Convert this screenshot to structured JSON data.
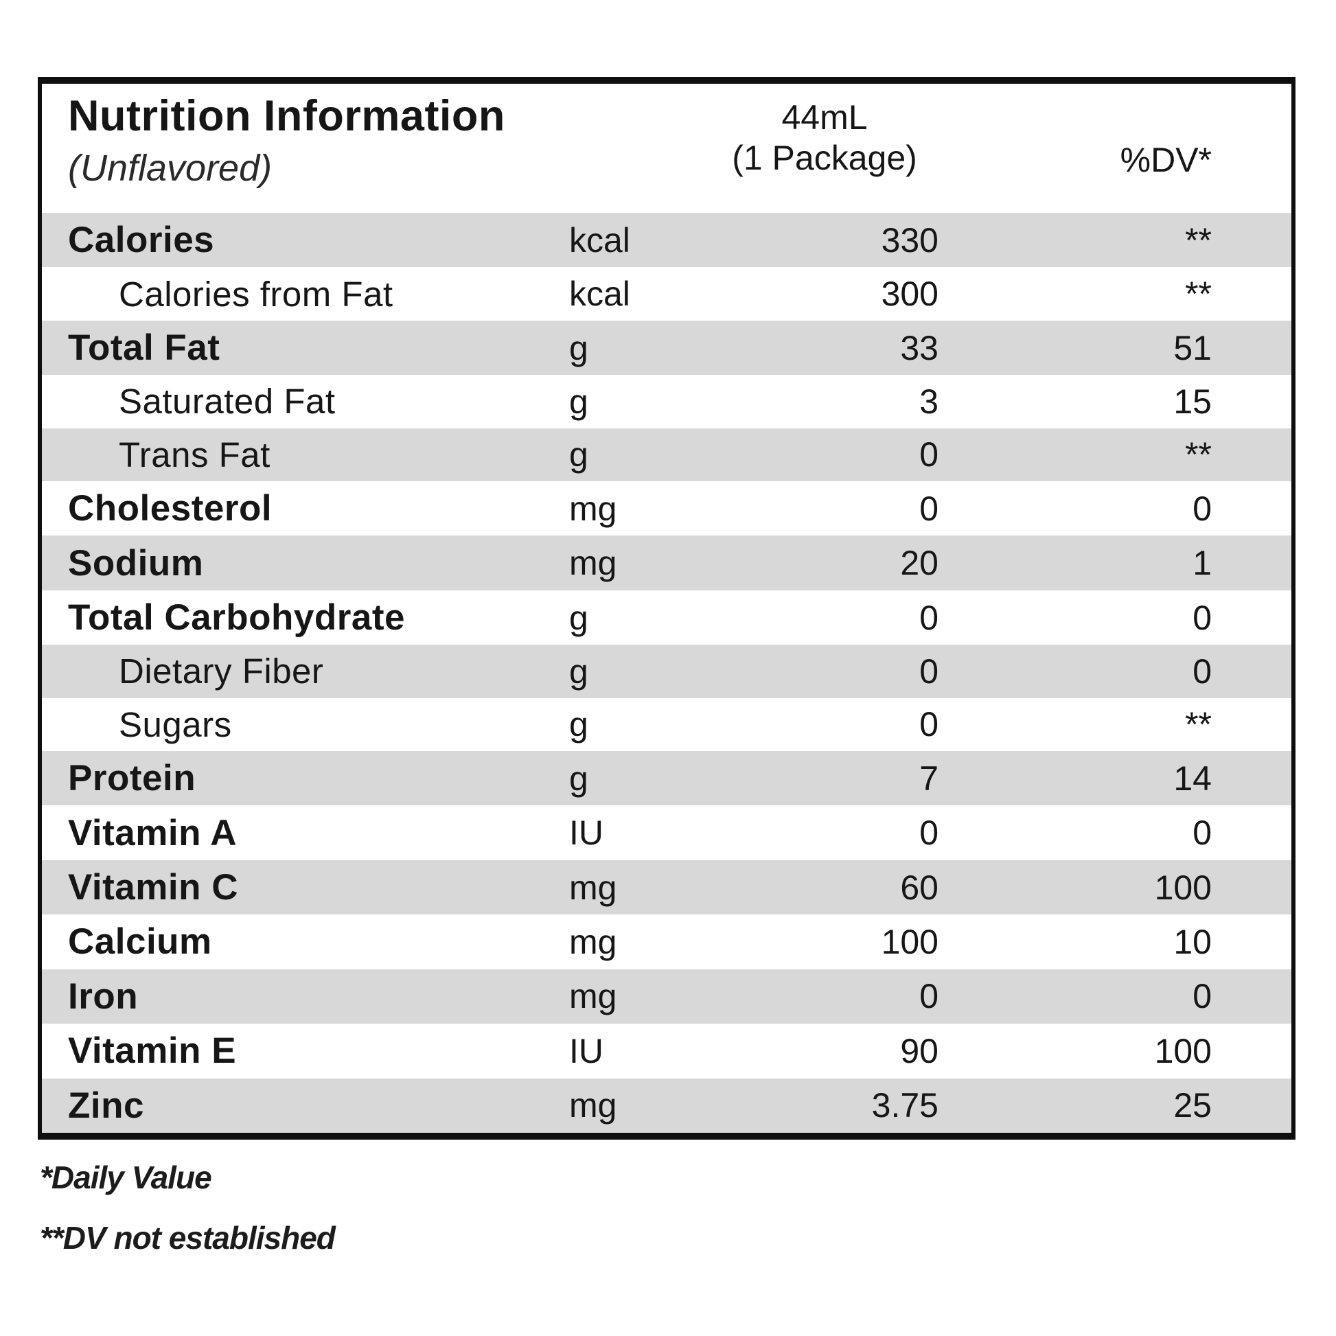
{
  "header": {
    "title": "Nutrition Information",
    "subtitle": "(Unflavored)",
    "serving_size": "44mL",
    "serving_unit": "(1 Package)",
    "dv_column_header": "%DV*"
  },
  "rows": [
    {
      "name": "Calories",
      "unit": "kcal",
      "amount": "330",
      "dv": "**",
      "indent": false,
      "shaded": true
    },
    {
      "name": "Calories from Fat",
      "unit": "kcal",
      "amount": "300",
      "dv": "**",
      "indent": true,
      "shaded": false
    },
    {
      "name": "Total Fat",
      "unit": "g",
      "amount": "33",
      "dv": "51",
      "indent": false,
      "shaded": true
    },
    {
      "name": "Saturated Fat",
      "unit": "g",
      "amount": "3",
      "dv": "15",
      "indent": true,
      "shaded": false
    },
    {
      "name": "Trans Fat",
      "unit": "g",
      "amount": "0",
      "dv": "**",
      "indent": true,
      "shaded": true
    },
    {
      "name": "Cholesterol",
      "unit": "mg",
      "amount": "0",
      "dv": "0",
      "indent": false,
      "shaded": false
    },
    {
      "name": "Sodium",
      "unit": "mg",
      "amount": "20",
      "dv": "1",
      "indent": false,
      "shaded": true
    },
    {
      "name": "Total Carbohydrate",
      "unit": "g",
      "amount": "0",
      "dv": "0",
      "indent": false,
      "shaded": false
    },
    {
      "name": "Dietary Fiber",
      "unit": "g",
      "amount": "0",
      "dv": "0",
      "indent": true,
      "shaded": true
    },
    {
      "name": "Sugars",
      "unit": "g",
      "amount": "0",
      "dv": "**",
      "indent": true,
      "shaded": false
    },
    {
      "name": "Protein",
      "unit": "g",
      "amount": "7",
      "dv": "14",
      "indent": false,
      "shaded": true
    },
    {
      "name": "Vitamin A",
      "unit": "IU",
      "amount": "0",
      "dv": "0",
      "indent": false,
      "shaded": false
    },
    {
      "name": "Vitamin C",
      "unit": "mg",
      "amount": "60",
      "dv": "100",
      "indent": false,
      "shaded": true
    },
    {
      "name": "Calcium",
      "unit": "mg",
      "amount": "100",
      "dv": "10",
      "indent": false,
      "shaded": false
    },
    {
      "name": "Iron",
      "unit": "mg",
      "amount": "0",
      "dv": "0",
      "indent": false,
      "shaded": true
    },
    {
      "name": "Vitamin E",
      "unit": "IU",
      "amount": "90",
      "dv": "100",
      "indent": false,
      "shaded": false
    },
    {
      "name": "Zinc",
      "unit": "mg",
      "amount": "3.75",
      "dv": "25",
      "indent": false,
      "shaded": true
    }
  ],
  "footnotes": {
    "daily_value": "*Daily Value",
    "dv_not_established": "**DV not established"
  },
  "colors": {
    "row_shade": "#d8d8d8",
    "border": "#0e0e0e",
    "text": "#161616",
    "background": "#ffffff"
  }
}
